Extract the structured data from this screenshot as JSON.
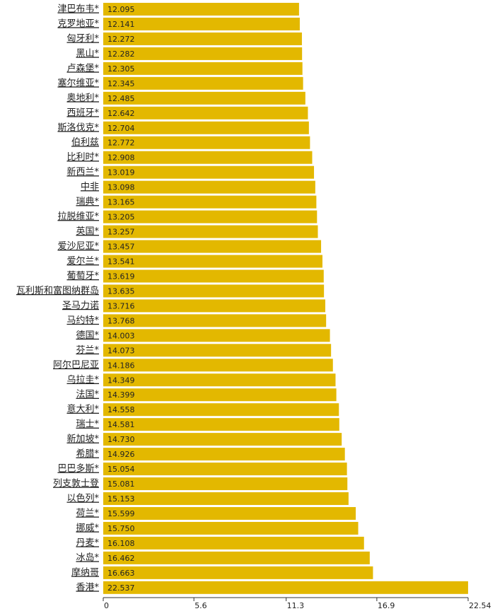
{
  "chart_data": {
    "type": "bar",
    "orientation": "horizontal",
    "color": "#e3b800",
    "categories": [
      "津巴布韦*",
      "克罗地亚*",
      "匈牙利*",
      "黑山*",
      "卢森堡*",
      "塞尔维亚*",
      "奥地利*",
      "西班牙*",
      "斯洛伐克*",
      "伯利兹",
      "比利时*",
      "新西兰*",
      "中非",
      "瑞典*",
      "拉脱维亚*",
      "英国*",
      "爱沙尼亚*",
      "爱尔兰*",
      "葡萄牙*",
      "瓦利斯和富图纳群岛",
      "圣马力诺",
      "马约特*",
      "德国*",
      "芬兰*",
      "阿尔巴尼亚",
      "乌拉圭*",
      "法国*",
      "意大利*",
      "瑞士*",
      "新加坡*",
      "希腊*",
      "巴巴多斯*",
      "列支敦士登",
      "以色列*",
      "荷兰*",
      "挪威*",
      "丹麦*",
      "冰岛*",
      "摩纳哥",
      "香港*"
    ],
    "values": [
      12.095,
      12.141,
      12.272,
      12.282,
      12.305,
      12.345,
      12.485,
      12.642,
      12.704,
      12.772,
      12.908,
      13.019,
      13.098,
      13.165,
      13.205,
      13.257,
      13.457,
      13.541,
      13.619,
      13.635,
      13.716,
      13.768,
      14.003,
      14.073,
      14.186,
      14.349,
      14.399,
      14.558,
      14.581,
      14.73,
      14.926,
      15.054,
      15.081,
      15.153,
      15.599,
      15.75,
      16.108,
      16.462,
      16.663,
      22.537
    ],
    "value_labels": [
      "12.095",
      "12.141",
      "12.272",
      "12.282",
      "12.305",
      "12.345",
      "12.485",
      "12.642",
      "12.704",
      "12.772",
      "12.908",
      "13.019",
      "13.098",
      "13.165",
      "13.205",
      "13.257",
      "13.457",
      "13.541",
      "13.619",
      "13.635",
      "13.716",
      "13.768",
      "14.003",
      "14.073",
      "14.186",
      "14.349",
      "14.399",
      "14.558",
      "14.581",
      "14.730",
      "14.926",
      "15.054",
      "15.081",
      "15.153",
      "15.599",
      "15.750",
      "16.108",
      "16.462",
      "16.663",
      "22.537"
    ],
    "xlim": [
      0,
      22.54
    ],
    "xticks": [
      0,
      5.6,
      11.3,
      16.9,
      22.54
    ]
  }
}
